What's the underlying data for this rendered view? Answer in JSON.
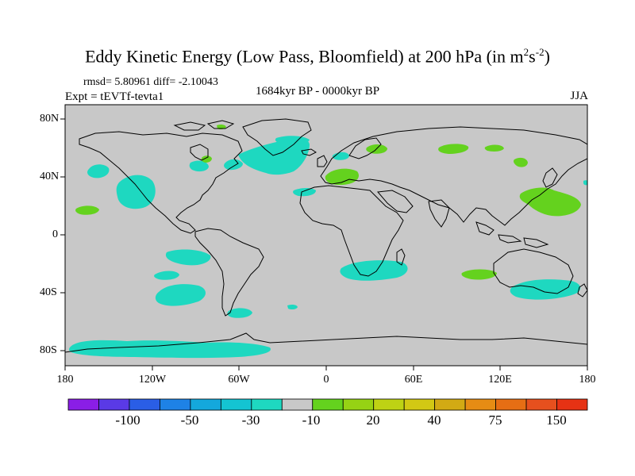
{
  "title": {
    "main": "Eddy Kinetic Energy (Low Pass, Bloomfield) at 200 hPa (in m",
    "sup1": "2",
    "mid": "s",
    "sup2": "-2",
    "end": ")"
  },
  "stats": "rmsd= 5.80961 diff= -2.10043",
  "expt": "Expt = tEVTf-tevta1",
  "period": "1684kyr BP - 0000kyr BP",
  "season": "JJA",
  "lat_ticks": [
    "80N",
    "40N",
    "0",
    "40S",
    "80S"
  ],
  "lon_ticks": [
    "180",
    "120W",
    "60W",
    "0",
    "60E",
    "120E",
    "180"
  ],
  "colorbar": {
    "labels": [
      "-100",
      "-50",
      "-30",
      "-10",
      "20",
      "40",
      "75",
      "150"
    ],
    "colors": [
      "#8a1ee6",
      "#5a3ae6",
      "#2a5ee6",
      "#1e82e6",
      "#14a8dc",
      "#14c4d2",
      "#1ed8c0",
      "#c8c8c8",
      "#64d21e",
      "#96d214",
      "#bed214",
      "#d2c814",
      "#d2aa14",
      "#e68c14",
      "#e66e14",
      "#e6501e",
      "#e63214"
    ]
  },
  "colors": {
    "land_ocean": "#c8c8c8",
    "negative": "#1ed8c0",
    "positive": "#64d21e",
    "coast": "#000000"
  }
}
